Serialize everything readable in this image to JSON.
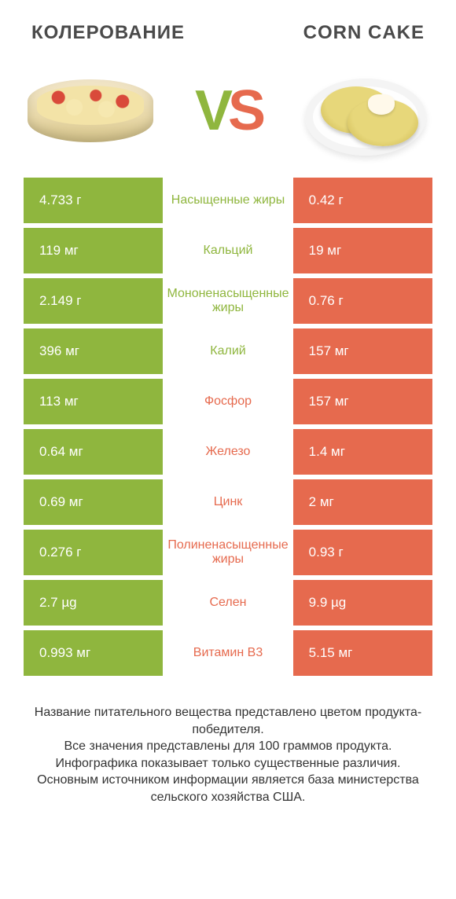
{
  "colors": {
    "green": "#8fb63e",
    "orange": "#e66a4e",
    "text": "#333333",
    "header": "#4a4a4a"
  },
  "header": {
    "left": "КОЛЕРОВАНИЕ",
    "right": "CORN CAKE"
  },
  "vs": {
    "v": "V",
    "s": "S"
  },
  "rows": [
    {
      "left": "4.733 г",
      "label": "Насыщенные жиры",
      "right": "0.42 г",
      "winner": "left"
    },
    {
      "left": "119 мг",
      "label": "Кальций",
      "right": "19 мг",
      "winner": "left"
    },
    {
      "left": "2.149 г",
      "label": "Мононенасыщенные жиры",
      "right": "0.76 г",
      "winner": "left"
    },
    {
      "left": "396 мг",
      "label": "Калий",
      "right": "157 мг",
      "winner": "left"
    },
    {
      "left": "113 мг",
      "label": "Фосфор",
      "right": "157 мг",
      "winner": "right"
    },
    {
      "left": "0.64 мг",
      "label": "Железо",
      "right": "1.4 мг",
      "winner": "right"
    },
    {
      "left": "0.69 мг",
      "label": "Цинк",
      "right": "2 мг",
      "winner": "right"
    },
    {
      "left": "0.276 г",
      "label": "Полиненасыщенные жиры",
      "right": "0.93 г",
      "winner": "right"
    },
    {
      "left": "2.7 µg",
      "label": "Селен",
      "right": "9.9 µg",
      "winner": "right"
    },
    {
      "left": "0.993 мг",
      "label": "Витамин B3",
      "right": "5.15 мг",
      "winner": "right"
    }
  ],
  "footer": "Название питательного вещества представлено цветом продукта-победителя.\nВсе значения представлены для 100 граммов продукта.\nИнфографика показывает только существенные различия.\nОсновным источником информации является база министерства сельского хозяйства США."
}
